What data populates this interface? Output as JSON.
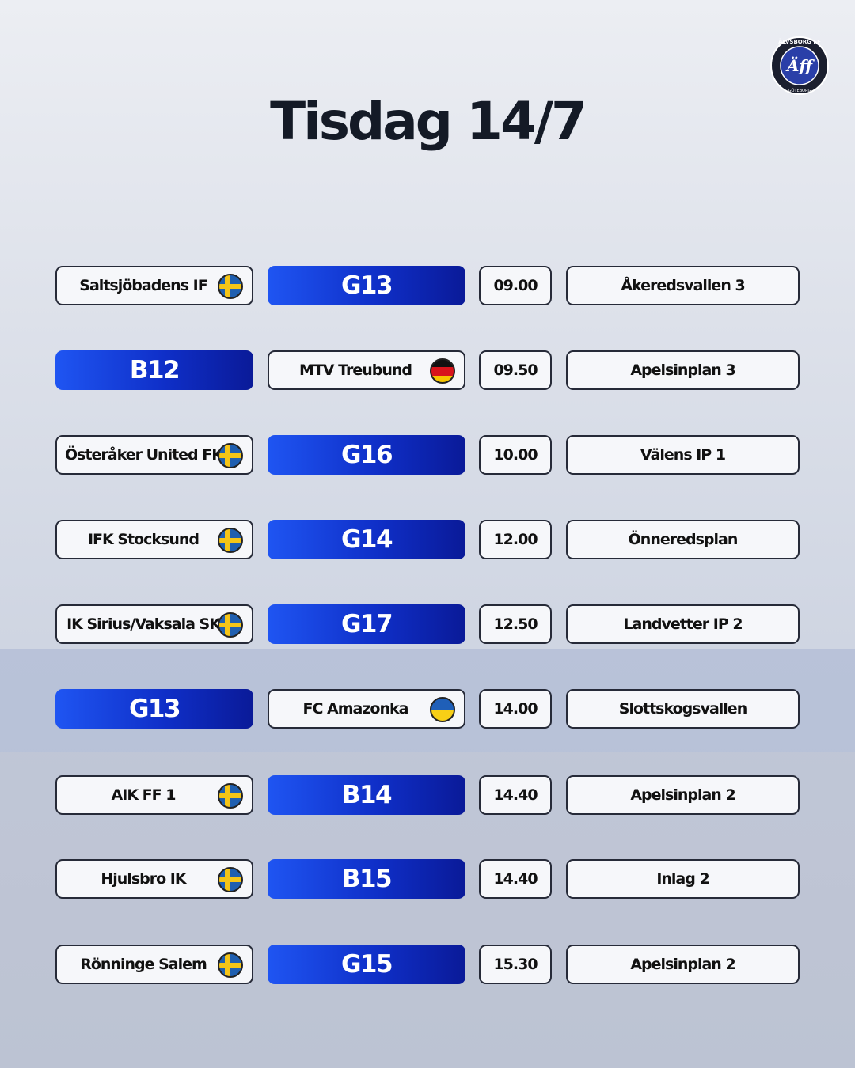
{
  "logo": {
    "top": "ÄLVSBORG FF",
    "mark": "Äff",
    "bottom": "GÖTEBORG"
  },
  "header": {
    "title": "Tisdag 14/7"
  },
  "matches": [
    {
      "team": "Saltsjöbadens IF",
      "group": "G13",
      "time": "09.00",
      "venue": "Åkeredsvallen 3"
    },
    {
      "team": "MTV Treubund",
      "group": "B12",
      "time": "09.50",
      "venue": "Apelsinplan 3"
    },
    {
      "team": "Österåker United FK",
      "group": "G16",
      "time": "10.00",
      "venue": "Välens IP 1"
    },
    {
      "team": "IFK Stocksund",
      "group": "G14",
      "time": "12.00",
      "venue": "Önneredsplan"
    },
    {
      "team": "IK Sirius/Vaksala SK",
      "group": "G17",
      "time": "12.50",
      "venue": "Landvetter IP 2"
    },
    {
      "team": "FC Amazonka",
      "group": "G13",
      "time": "14.00",
      "venue": "Slottskogsvallen"
    },
    {
      "team": "AIK FF 1",
      "group": "B14",
      "time": "14.40",
      "venue": "Apelsinplan 2"
    },
    {
      "team": "Hjulsbro IK",
      "group": "B15",
      "time": "14.40",
      "venue": "Inlag 2"
    },
    {
      "team": "Rönninge Salem",
      "group": "G15",
      "time": "15.30",
      "venue": "Apelsinplan 2"
    }
  ]
}
